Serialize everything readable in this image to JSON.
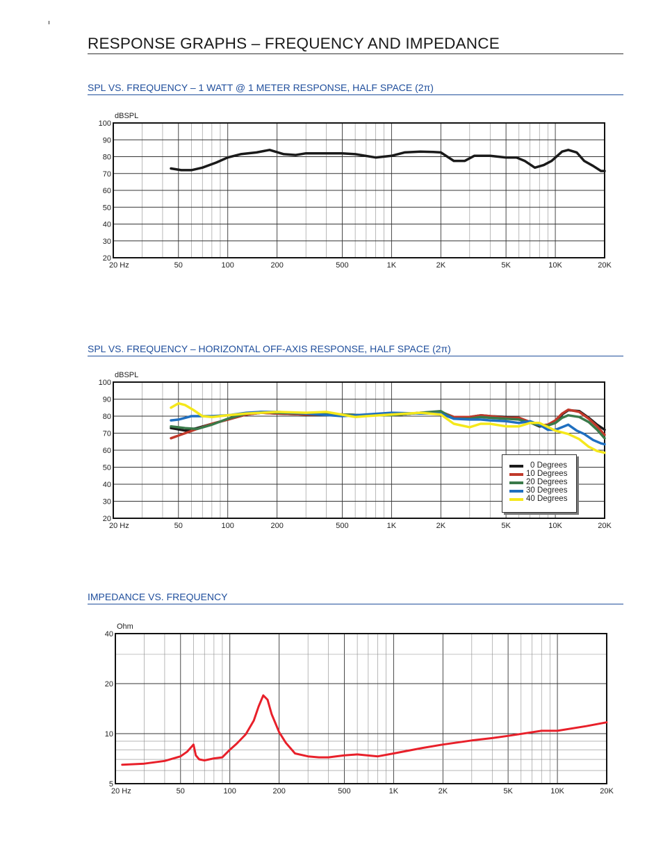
{
  "page": {
    "title": "RESPONSE GRAPHS – FREQUENCY AND IMPEDANCE",
    "sections": [
      "SPL VS. FREQUENCY – 1 WATT @ 1 METER RESPONSE, HALF SPACE (2π)",
      "SPL VS. FREQUENCY – HORIZONTAL OFF-AXIS RESPONSE, HALF SPACE (2π)",
      "IMPEDANCE VS. FREQUENCY"
    ]
  },
  "colors": {
    "section_title": "#1f4e9c",
    "series": [
      "#1a1a1a",
      "#c0392b",
      "#3a7a4a",
      "#1f6fc0",
      "#f5e81c"
    ],
    "impedance": "#e8202a"
  },
  "chart_data": [
    {
      "type": "line",
      "title": "SPL VS. FREQUENCY – 1 WATT @ 1 METER RESPONSE, HALF SPACE (2π)",
      "ylabel": "dBSPL",
      "xlabel": "",
      "xscale": "log",
      "xlim": [
        20,
        20000
      ],
      "ylim": [
        20,
        100
      ],
      "grid": true,
      "xticks": [
        20,
        50,
        100,
        200,
        500,
        1000,
        2000,
        5000,
        10000,
        20000
      ],
      "xtick_labels": [
        "20  Hz",
        "50",
        "100",
        "200",
        "500",
        "1K",
        "2K",
        "5K",
        "10K",
        "20K"
      ],
      "yticks": [
        20,
        30,
        40,
        50,
        60,
        70,
        80,
        90,
        100
      ],
      "ytick_labels": [
        "20",
        "30",
        "40",
        "50",
        "60",
        "70",
        "80",
        "90",
        "100"
      ],
      "series": [
        {
          "x": [
            45,
            52,
            60,
            70,
            85,
            100,
            120,
            150,
            180,
            220,
            260,
            300,
            400,
            500,
            600,
            800,
            1000,
            1200,
            1500,
            1800,
            2000,
            2400,
            2800,
            3200,
            4000,
            5000,
            5800,
            6500,
            7500,
            8500,
            9500,
            11000,
            12000,
            13500,
            15000,
            17000,
            19000,
            20000
          ],
          "y": [
            73,
            72,
            72,
            73.5,
            76.5,
            79.5,
            81.5,
            82.5,
            84,
            81.5,
            81,
            82,
            82,
            82,
            81.5,
            79.5,
            80.5,
            82.5,
            83,
            82.8,
            82.5,
            77.5,
            77.5,
            80.5,
            80.5,
            79.5,
            79.5,
            77.5,
            73.5,
            75,
            77.5,
            83,
            84,
            82.5,
            77.5,
            74.5,
            71.5,
            71.5
          ]
        }
      ]
    },
    {
      "type": "line",
      "title": "SPL VS. FREQUENCY – HORIZONTAL OFF-AXIS RESPONSE, HALF SPACE (2π)",
      "ylabel": "dBSPL",
      "xlabel": "",
      "xscale": "log",
      "xlim": [
        20,
        20000
      ],
      "ylim": [
        20,
        100
      ],
      "grid": true,
      "legend": "bottom-right",
      "xticks": [
        20,
        50,
        100,
        200,
        500,
        1000,
        2000,
        5000,
        10000,
        20000
      ],
      "xtick_labels": [
        "20  Hz",
        "50",
        "100",
        "200",
        "500",
        "1K",
        "2K",
        "5K",
        "10K",
        "20K"
      ],
      "yticks": [
        20,
        30,
        40,
        50,
        60,
        70,
        80,
        90,
        100
      ],
      "ytick_labels": [
        "20",
        "30",
        "40",
        "50",
        "60",
        "70",
        "80",
        "90",
        "100"
      ],
      "series": [
        {
          "name": "0 Degrees",
          "x": [
            45,
            55,
            65,
            80,
            100,
            130,
            160,
            200,
            300,
            500,
            700,
            1000,
            1500,
            2000,
            2400,
            3000,
            3500,
            4000,
            5000,
            6000,
            8000,
            9000,
            10000,
            11000,
            12000,
            14000,
            16000,
            18000,
            20000
          ],
          "y": [
            73,
            71.5,
            73,
            75.5,
            78,
            81,
            82,
            81.5,
            81,
            81,
            80.5,
            80.5,
            82,
            82.5,
            79.5,
            79.5,
            80.5,
            80,
            79.5,
            79,
            74,
            74.5,
            77,
            81,
            83.5,
            83,
            79,
            75,
            72
          ]
        },
        {
          "name": "10 Degrees",
          "x": [
            45,
            55,
            65,
            80,
            100,
            130,
            160,
            200,
            300,
            500,
            700,
            1000,
            1500,
            2000,
            2400,
            3000,
            3500,
            4000,
            5000,
            6000,
            8000,
            9000,
            10000,
            11000,
            12000,
            14000,
            16000,
            18000,
            20000
          ],
          "y": [
            67,
            70,
            72.5,
            75.5,
            78,
            81,
            82,
            81.5,
            81,
            81,
            80.5,
            80.5,
            82,
            82.5,
            79.5,
            79.5,
            80.5,
            80,
            79,
            79,
            74.5,
            75,
            77.5,
            81.5,
            83.8,
            82.5,
            78.5,
            74,
            69
          ]
        },
        {
          "name": "20 Degrees",
          "x": [
            45,
            55,
            65,
            80,
            100,
            130,
            160,
            200,
            300,
            500,
            700,
            1000,
            1500,
            2000,
            2400,
            3000,
            3500,
            4000,
            5000,
            6000,
            8000,
            9000,
            10000,
            11000,
            12000,
            14000,
            16000,
            18000,
            20000
          ],
          "y": [
            74,
            73,
            72.5,
            75,
            78.5,
            81.5,
            82.5,
            82,
            81.5,
            81,
            80.5,
            80.5,
            82,
            83,
            78.5,
            78.5,
            79.5,
            79,
            78.5,
            78,
            74.5,
            74.5,
            76,
            79,
            80.5,
            79.5,
            76.5,
            72,
            67
          ]
        },
        {
          "name": "30 Degrees",
          "x": [
            45,
            50,
            55,
            60,
            70,
            80,
            100,
            130,
            160,
            200,
            300,
            500,
            700,
            1000,
            1500,
            2000,
            2400,
            3000,
            3500,
            4000,
            5000,
            6000,
            7000,
            8000,
            9000,
            10000,
            11000,
            12000,
            13500,
            15000,
            17000,
            19000,
            20000
          ],
          "y": [
            77.5,
            78,
            79,
            80,
            80,
            80,
            80.5,
            82,
            82.5,
            82.5,
            81.5,
            80,
            81,
            82,
            81.5,
            81.5,
            78.5,
            78,
            78,
            77.5,
            77,
            76,
            77,
            75,
            72,
            72,
            73.5,
            75,
            71.5,
            69.5,
            66,
            64,
            63.5
          ]
        },
        {
          "name": "40 Degrees",
          "x": [
            45,
            50,
            55,
            62,
            70,
            80,
            100,
            130,
            160,
            200,
            300,
            400,
            600,
            700,
            1000,
            1500,
            2000,
            2400,
            3000,
            3500,
            4000,
            5000,
            6000,
            7000,
            8000,
            10000,
            12000,
            14000,
            16000,
            18000,
            20000
          ],
          "y": [
            85,
            87.5,
            86.5,
            83.5,
            80,
            79.5,
            80.5,
            81.5,
            82,
            82.5,
            82,
            82.5,
            79.5,
            80,
            81,
            82,
            81,
            75.5,
            73.5,
            75.5,
            75.5,
            74,
            74,
            76,
            76,
            71.5,
            69.5,
            66.5,
            62,
            59.5,
            58.5
          ]
        }
      ]
    },
    {
      "type": "line",
      "title": "IMPEDANCE VS. FREQUENCY",
      "ylabel": "Ohm",
      "xlabel": "",
      "xscale": "log",
      "yscale": "log",
      "xlim": [
        20,
        20000
      ],
      "ylim": [
        5,
        40
      ],
      "grid": true,
      "xticks": [
        20,
        50,
        100,
        200,
        500,
        1000,
        2000,
        5000,
        10000,
        20000
      ],
      "xtick_labels": [
        "20  Hz",
        "50",
        "100",
        "200",
        "500",
        "1K",
        "2K",
        "5K",
        "10K",
        "20K"
      ],
      "yticks": [
        5,
        10,
        20,
        40
      ],
      "ytick_labels": [
        "5",
        "10",
        "20",
        "40"
      ],
      "series": [
        {
          "x": [
            22,
            30,
            40,
            50,
            55,
            60,
            62,
            65,
            70,
            80,
            90,
            100,
            110,
            125,
            140,
            150,
            160,
            170,
            180,
            200,
            220,
            250,
            300,
            350,
            400,
            500,
            600,
            800,
            1000,
            1500,
            2000,
            3000,
            4000,
            5000,
            8000,
            10000,
            15000,
            20000
          ],
          "y": [
            6.5,
            6.6,
            6.85,
            7.3,
            7.8,
            8.6,
            7.4,
            7.0,
            6.9,
            7.1,
            7.2,
            8.0,
            8.7,
            9.9,
            12.0,
            14.6,
            17.0,
            16.0,
            13.1,
            10.2,
            8.8,
            7.6,
            7.3,
            7.2,
            7.2,
            7.4,
            7.5,
            7.3,
            7.6,
            8.2,
            8.6,
            9.1,
            9.4,
            9.7,
            10.4,
            10.4,
            11.1,
            11.7
          ]
        }
      ]
    }
  ]
}
